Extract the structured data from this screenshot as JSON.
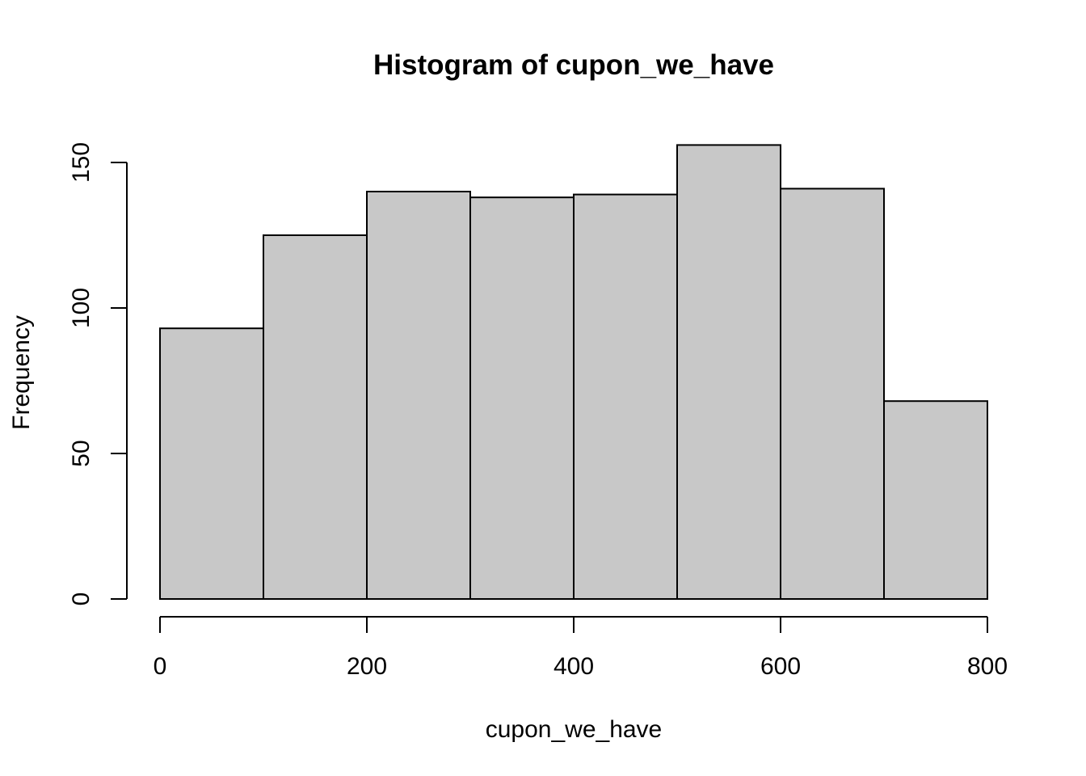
{
  "chart_data": {
    "type": "bar",
    "subtype": "histogram",
    "title": "Histogram of cupon_we_have",
    "xlabel": "cupon_we_have",
    "ylabel": "Frequency",
    "bins": [
      {
        "x0": 0,
        "x1": 100,
        "count": 93
      },
      {
        "x0": 100,
        "x1": 200,
        "count": 125
      },
      {
        "x0": 200,
        "x1": 300,
        "count": 140
      },
      {
        "x0": 300,
        "x1": 400,
        "count": 138
      },
      {
        "x0": 400,
        "x1": 500,
        "count": 139
      },
      {
        "x0": 500,
        "x1": 600,
        "count": 156
      },
      {
        "x0": 600,
        "x1": 700,
        "count": 141
      },
      {
        "x0": 700,
        "x1": 800,
        "count": 68
      }
    ],
    "xticks": [
      0,
      200,
      400,
      600,
      800
    ],
    "yticks": [
      0,
      50,
      100,
      150
    ],
    "xlim": [
      0,
      800
    ],
    "ylim": [
      0,
      150
    ],
    "grid": false,
    "legend": "none",
    "bar_fill": "#c8c8c8",
    "bar_stroke": "#000000"
  }
}
